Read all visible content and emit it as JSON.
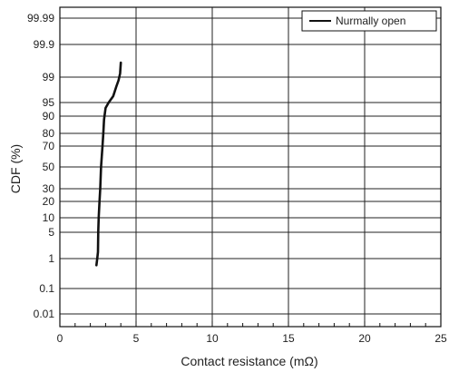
{
  "chart_data": {
    "type": "line",
    "xlabel": "Contact resistance (mΩ)",
    "ylabel": "CDF (%)",
    "xlim": [
      0,
      25
    ],
    "ylim": [
      0.01,
      99.99
    ],
    "y_scale": "probability",
    "grid": true,
    "legend_position": "top-right",
    "x_ticks": [
      0,
      5,
      10,
      15,
      20,
      25
    ],
    "x_tick_labels": [
      "0",
      "5",
      "10",
      "15",
      "20",
      "25"
    ],
    "y_ticks": [
      0.01,
      0.1,
      1,
      5,
      10,
      20,
      30,
      50,
      70,
      80,
      90,
      95,
      99,
      99.9,
      99.99
    ],
    "y_tick_labels": [
      "0.01",
      "0.1",
      "1",
      "5",
      "10",
      "20",
      "30",
      "50",
      "70",
      "80",
      "90",
      "95",
      "99",
      "99.9",
      "99.99"
    ],
    "series": [
      {
        "name": "Nurmally open",
        "color": "#111111",
        "x": [
          2.4,
          2.45,
          2.5,
          2.52,
          2.55,
          2.6,
          2.65,
          2.7,
          2.75,
          2.8,
          2.85,
          2.9,
          3.0,
          3.2,
          3.5,
          3.7,
          3.85,
          3.95,
          4.0
        ],
        "y": [
          0.8,
          1,
          2,
          5,
          10,
          20,
          30,
          50,
          60,
          70,
          80,
          88,
          93,
          95,
          96,
          97.5,
          98.5,
          99.1,
          99.4
        ]
      }
    ]
  }
}
